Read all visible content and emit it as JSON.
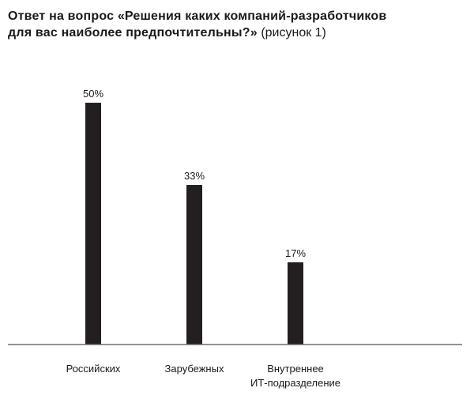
{
  "header": {
    "title_bold_line1": "Ответ на вопрос «Решения каких компаний-разработчиков",
    "title_bold_line2": "для вас наиболее предпочтительны?»",
    "title_note": "(рисунок 1)"
  },
  "chart_data": {
    "type": "bar",
    "categories": [
      [
        "Российских"
      ],
      [
        "Зарубежных"
      ],
      [
        "Внутреннее",
        "ИТ-подразделение"
      ]
    ],
    "values": [
      50,
      33,
      17
    ],
    "data_labels": [
      "50%",
      "33%",
      "17%"
    ],
    "ylim": [
      0,
      50
    ],
    "grid": false,
    "colors": {
      "bar": "#231f20",
      "axis": "#6d6d6d"
    }
  }
}
